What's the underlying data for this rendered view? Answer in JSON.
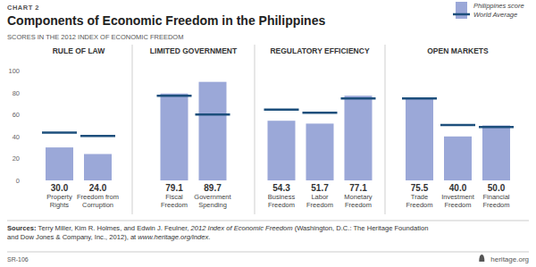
{
  "header": {
    "label": "CHART 2",
    "title": "Components of Economic Freedom in the Philippines",
    "subtitle": "SCORES IN THE 2012 INDEX OF ECONOMIC FREEDOM"
  },
  "chart_data": [
    {
      "type": "bar",
      "title": "RULE OF LAW",
      "categories": [
        "Property Rights",
        "Freedom from Corruption"
      ],
      "series": [
        {
          "color": "#9ba8d8",
          "values": [
            30.0,
            24.0
          ],
          "value_labels": [
            "30.0",
            "24.0"
          ]
        },
        {
          "type": "line",
          "marker": "dash",
          "line_style": "none",
          "color": "#1d4f7c",
          "values": [
            43.5,
            40.5
          ]
        }
      ],
      "ylim": [
        0,
        100
      ],
      "yticks": [
        0,
        20,
        40,
        60,
        80,
        100
      ],
      "data_labels": true,
      "tick_labels": true
    },
    {
      "type": "bar",
      "title": "LIMITED GOVERNMENT",
      "categories": [
        "Fiscal Freedom",
        "Government Spending"
      ],
      "series": [
        {
          "color": "#9ba8d8",
          "values": [
            79.1,
            89.7
          ],
          "value_labels": [
            "79.1",
            "89.7"
          ]
        },
        {
          "type": "line",
          "marker": "dash",
          "line_style": "none",
          "color": "#1d4f7c",
          "values": [
            77.0,
            60.0
          ]
        }
      ],
      "ylim": [
        0,
        100
      ],
      "data_labels": true,
      "tick_labels": "x"
    },
    {
      "type": "bar",
      "title": "REGULATORY EFFICIENCY",
      "categories": [
        "Business Freedom",
        "Labor Freedom",
        "Monetary Freedom"
      ],
      "series": [
        {
          "color": "#9ba8d8",
          "values": [
            54.3,
            51.7,
            77.1
          ],
          "value_labels": [
            "54.3",
            "51.7",
            "77.1"
          ]
        },
        {
          "type": "line",
          "marker": "dash",
          "line_style": "none",
          "color": "#1d4f7c",
          "values": [
            64.5,
            61.5,
            74.5
          ]
        }
      ],
      "ylim": [
        0,
        100
      ],
      "data_labels": true,
      "tick_labels": "x"
    },
    {
      "type": "bar",
      "title": "OPEN MARKETS",
      "categories": [
        "Trade Freedom",
        "Investment Freedom",
        "Financial Freedom"
      ],
      "series": [
        {
          "name": "Philippines score",
          "color": "#9ba8d8",
          "values": [
            75.5,
            40.0,
            50.0
          ],
          "value_labels": [
            "75.5",
            "40.0",
            "50.0"
          ]
        },
        {
          "name": "World Average",
          "type": "line",
          "marker": "dash",
          "line_style": "none",
          "color": "#1d4f7c",
          "values": [
            74.5,
            50.5,
            48.5
          ]
        }
      ],
      "ylim": [
        0,
        100
      ],
      "data_labels": true,
      "tick_labels": "x",
      "legend": "top-right"
    }
  ],
  "footer": {
    "source_label": "Sources:",
    "source_lines": [
      [
        "Terry Miller, Kim R. Holmes, and Edwin J. Feulner, ",
        "2012 Index of Economic Freedom",
        " (Washington, D.C.: The Heritage Foundation"
      ],
      [
        "and Dow Jones & Company, Inc., 2012), at ",
        "www.heritage.org/index",
        "."
      ]
    ],
    "code": "SR-106",
    "site": "heritage.org"
  }
}
